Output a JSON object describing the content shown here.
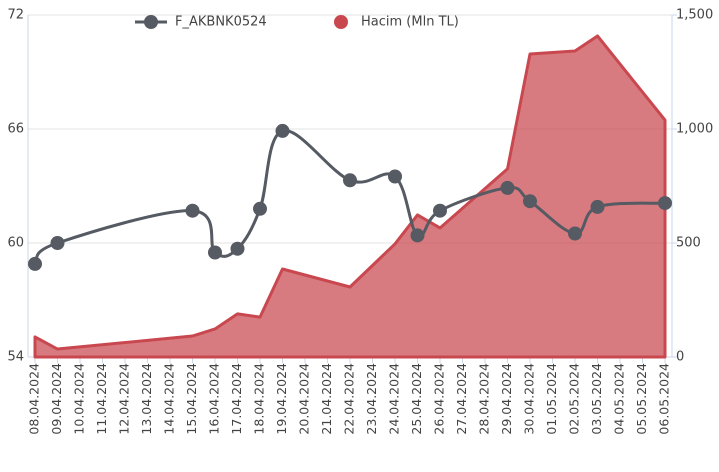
{
  "chart_data": {
    "type": "line",
    "categories": [
      "08.04.2024",
      "09.04.2024",
      "10.04.2024",
      "11.04.2024",
      "12.04.2024",
      "13.04.2024",
      "14.04.2024",
      "15.04.2024",
      "16.04.2024",
      "17.04.2024",
      "18.04.2024",
      "19.04.2024",
      "20.04.2024",
      "21.04.2024",
      "22.04.2024",
      "23.04.2024",
      "24.04.2024",
      "25.04.2024",
      "26.04.2024",
      "27.04.2024",
      "28.04.2024",
      "29.04.2024",
      "30.04.2024",
      "01.05.2024",
      "02.05.2024",
      "03.05.2024",
      "04.05.2024",
      "05.05.2024",
      "06.05.2024"
    ],
    "x": [
      "08.04.2024",
      "09.04.2024",
      "15.04.2024",
      "16.04.2024",
      "17.04.2024",
      "18.04.2024",
      "19.04.2024",
      "22.04.2024",
      "24.04.2024",
      "25.04.2024",
      "26.04.2024",
      "29.04.2024",
      "30.04.2024",
      "02.05.2024",
      "03.05.2024",
      "06.05.2024"
    ],
    "series": [
      {
        "name": "F_AKBNK0524",
        "type": "line",
        "color": "#555a63",
        "values": [
          58.9,
          60.0,
          61.7,
          59.5,
          59.7,
          61.8,
          65.9,
          63.3,
          63.5,
          60.4,
          61.7,
          62.9,
          62.2,
          60.5,
          61.9,
          62.1
        ]
      },
      {
        "name": "Hacim (Mln TL)",
        "type": "area",
        "axis": "y2",
        "color": "#c9484f",
        "values": [
          88,
          35,
          92,
          123,
          189,
          175,
          386,
          307,
          496,
          623,
          566,
          825,
          1329,
          1342,
          1408,
          1039
        ]
      }
    ],
    "ylim": [
      54,
      72
    ],
    "yticks": [
      54,
      60,
      66,
      72
    ],
    "y2lim": [
      0,
      1500
    ],
    "y2ticks": [
      0,
      500,
      {
        "value": 1000,
        "label": "1,000"
      },
      {
        "value": 1500,
        "label": "1,500"
      }
    ],
    "grid": true,
    "legend": "top"
  }
}
